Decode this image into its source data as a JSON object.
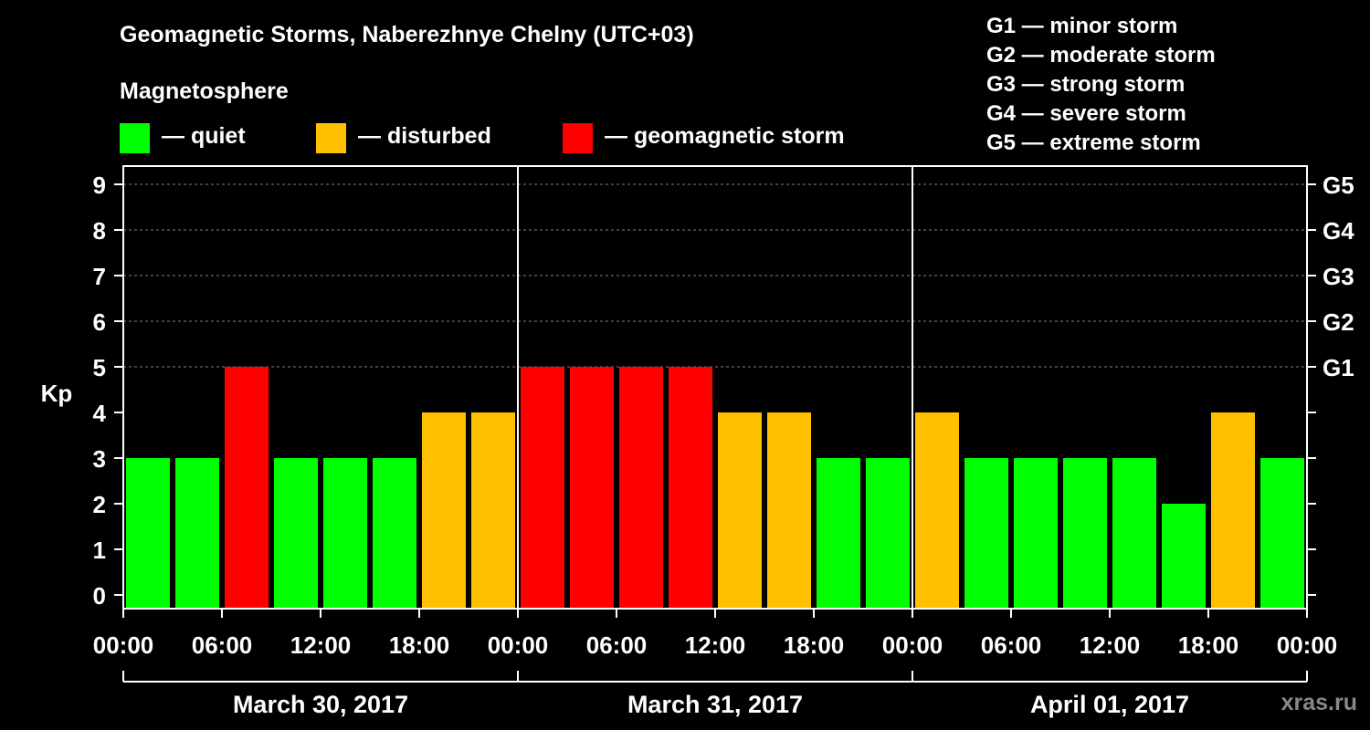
{
  "colors": {
    "quiet": "#00ff00",
    "disturbed": "#ffc000",
    "storm": "#ff0000",
    "background": "#000000",
    "foreground": "#ffffff"
  },
  "title": "Geomagnetic Storms, Naberezhnye Chelny (UTC+03)",
  "legend": {
    "heading": "Magnetosphere",
    "quiet": "— quiet",
    "disturbed": "— disturbed",
    "storm": "— geomagnetic storm"
  },
  "g_scale": [
    "G1 — minor storm",
    "G2 — moderate storm",
    "G3 — strong storm",
    "G4 — severe storm",
    "G5 — extreme storm"
  ],
  "watermark": "xras.ru",
  "chart_data": {
    "type": "bar",
    "title": "Geomagnetic Storms, Naberezhnye Chelny (UTC+03)",
    "ylabel": "Kp",
    "ylim": [
      0,
      9
    ],
    "y_ticks": [
      "0",
      "1",
      "2",
      "3",
      "4",
      "5",
      "6",
      "7",
      "8",
      "9"
    ],
    "right_axis": [
      {
        "kp": 5,
        "label": "G1"
      },
      {
        "kp": 6,
        "label": "G2"
      },
      {
        "kp": 7,
        "label": "G3"
      },
      {
        "kp": 8,
        "label": "G4"
      },
      {
        "kp": 9,
        "label": "G5"
      }
    ],
    "x_ticks": [
      "00:00",
      "06:00",
      "12:00",
      "18:00",
      "00:00",
      "06:00",
      "12:00",
      "18:00",
      "00:00",
      "06:00",
      "12:00",
      "18:00",
      "00:00"
    ],
    "days": [
      "March 30, 2017",
      "March 31, 2017",
      "April 01, 2017"
    ],
    "interval_hours": 3,
    "values": [
      3,
      3,
      5,
      3,
      3,
      3,
      4,
      4,
      5,
      5,
      5,
      5,
      4,
      4,
      3,
      3,
      4,
      3,
      3,
      3,
      3,
      2,
      4,
      3
    ],
    "thresholds": {
      "disturbed": 4,
      "storm": 5
    },
    "grid": true
  }
}
